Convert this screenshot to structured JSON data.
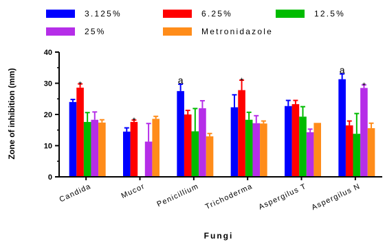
{
  "chart_data": {
    "type": "bar",
    "title": "",
    "xlabel": "Fungi",
    "ylabel": "Zone of inhibition (mm)",
    "ylim": [
      0,
      40
    ],
    "yticks": [
      "0",
      "10",
      "20",
      "30",
      "40"
    ],
    "grid": false,
    "legend_position": "top",
    "categories": [
      "Candida",
      "Mucor",
      "Penicillium",
      "Trichoderma",
      "Aspergilus T",
      "Aspergilus N"
    ],
    "series": [
      {
        "name": "3.125%",
        "color": "#0000ff",
        "values": [
          24,
          14.5,
          27.5,
          22.3,
          22.7,
          31.3
        ],
        "errors": [
          0.8,
          1.2,
          2.2,
          4.0,
          1.8,
          1.7
        ]
      },
      {
        "name": "6.25%",
        "color": "#ff0000",
        "values": [
          28.6,
          17.6,
          20,
          27.8,
          23.3,
          16.5
        ],
        "errors": [
          1.2,
          0.6,
          1.3,
          3.2,
          1.2,
          1.4
        ]
      },
      {
        "name": "12.5%",
        "color": "#00bb00",
        "values": [
          17.6,
          0,
          14.6,
          18.3,
          19.3,
          13.8
        ],
        "errors": [
          3.0,
          0,
          7.3,
          2.4,
          3.2,
          6.5
        ]
      },
      {
        "name": "25%",
        "color": "#b52ee8",
        "values": [
          18.3,
          11.3,
          22,
          17.2,
          14.3,
          28.5
        ],
        "errors": [
          2.5,
          5.8,
          2.4,
          2.4,
          1.0,
          1.0
        ]
      },
      {
        "name": "Metronidazole",
        "color": "#ff8c1a",
        "values": [
          17.4,
          18.6,
          13,
          17.1,
          17.3,
          15.6
        ],
        "errors": [
          0.9,
          0.8,
          0.9,
          0.8,
          0,
          1.6
        ]
      }
    ],
    "annotations": [
      {
        "category": "Candida",
        "series": "6.25%",
        "text": "*"
      },
      {
        "category": "Mucor",
        "series": "6.25%",
        "text": "*"
      },
      {
        "category": "Penicillium",
        "series": "3.125%",
        "text": "a"
      },
      {
        "category": "Trichoderma",
        "series": "6.25%",
        "text": "*"
      },
      {
        "category": "Aspergilus N",
        "series": "3.125%",
        "text": "a"
      },
      {
        "category": "Aspergilus N",
        "series": "25%",
        "text": "*"
      }
    ]
  }
}
